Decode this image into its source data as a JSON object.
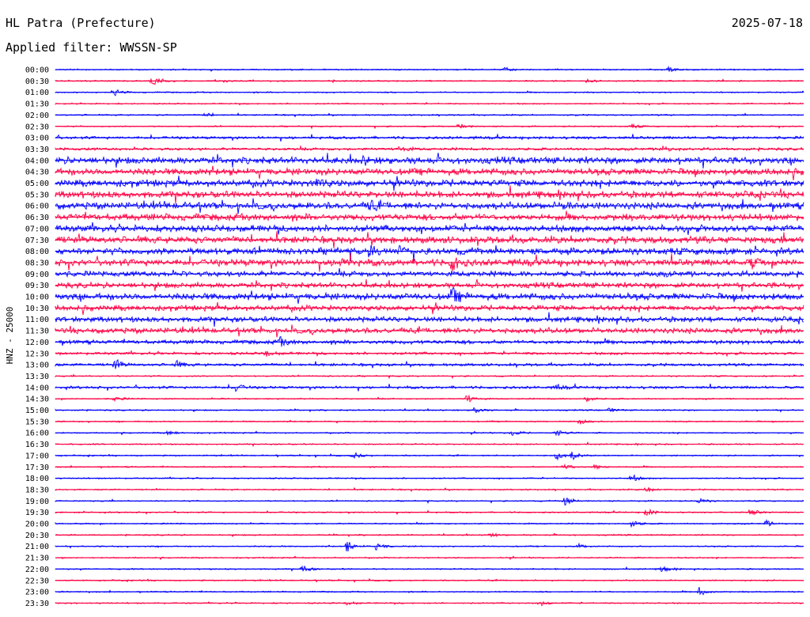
{
  "header": {
    "station": "HL Patra (Prefecture)",
    "filter": "Applied filter: WWSSN-SP",
    "date": "2025-07-18"
  },
  "chart_data": {
    "type": "line",
    "ylabel": "HNZ - 25000",
    "colors": [
      "#0000ff",
      "#ff0044"
    ],
    "row_labels": [
      "00:00",
      "00:30",
      "01:00",
      "01:30",
      "02:00",
      "02:30",
      "03:00",
      "03:30",
      "04:00",
      "04:30",
      "05:00",
      "05:30",
      "06:00",
      "06:30",
      "07:00",
      "07:30",
      "08:00",
      "08:30",
      "09:00",
      "09:30",
      "10:00",
      "10:30",
      "11:00",
      "11:30",
      "12:00",
      "12:30",
      "13:00",
      "13:30",
      "14:00",
      "14:30",
      "15:00",
      "15:30",
      "16:00",
      "16:30",
      "17:00",
      "17:30",
      "18:00",
      "18:30",
      "19:00",
      "19:30",
      "20:00",
      "20:30",
      "21:00",
      "21:30",
      "22:00",
      "22:30",
      "23:00",
      "23:30"
    ],
    "noise_levels": [
      1,
      1,
      1,
      1,
      1,
      1,
      2,
      2,
      5,
      5,
      5,
      5,
      5,
      5,
      5,
      5,
      5,
      5,
      4,
      4,
      5,
      4,
      4,
      4,
      3,
      2,
      2,
      1,
      2,
      1,
      1,
      1,
      1,
      1,
      1,
      1,
      1,
      1,
      1,
      1,
      1,
      1,
      1,
      1,
      1,
      1,
      1,
      1
    ],
    "events": [
      {
        "row": 0,
        "x": 0.6,
        "a": 3
      },
      {
        "row": 0,
        "x": 0.82,
        "a": 3
      },
      {
        "row": 1,
        "x": 0.13,
        "a": 8
      },
      {
        "row": 1,
        "x": 0.71,
        "a": 2
      },
      {
        "row": 2,
        "x": 0.08,
        "a": 4
      },
      {
        "row": 4,
        "x": 0.2,
        "a": 3
      },
      {
        "row": 5,
        "x": 0.54,
        "a": 4
      },
      {
        "row": 5,
        "x": 0.77,
        "a": 3
      },
      {
        "row": 7,
        "x": 0.46,
        "a": 4
      },
      {
        "row": 7,
        "x": 0.81,
        "a": 5
      },
      {
        "row": 8,
        "x": 0.41,
        "a": 4
      },
      {
        "row": 10,
        "x": 0.35,
        "a": 6
      },
      {
        "row": 12,
        "x": 0.42,
        "a": 6
      },
      {
        "row": 12,
        "x": 0.68,
        "a": 5
      },
      {
        "row": 16,
        "x": 0.42,
        "a": 7
      },
      {
        "row": 16,
        "x": 0.46,
        "a": 6
      },
      {
        "row": 17,
        "x": 0.38,
        "a": 7
      },
      {
        "row": 17,
        "x": 0.53,
        "a": 10
      },
      {
        "row": 17,
        "x": 0.93,
        "a": 6
      },
      {
        "row": 20,
        "x": 0.53,
        "a": 9
      },
      {
        "row": 24,
        "x": 0.3,
        "a": 5
      },
      {
        "row": 25,
        "x": 0.28,
        "a": 4
      },
      {
        "row": 26,
        "x": 0.08,
        "a": 6
      },
      {
        "row": 26,
        "x": 0.16,
        "a": 5
      },
      {
        "row": 28,
        "x": 0.24,
        "a": 5
      },
      {
        "row": 28,
        "x": 0.67,
        "a": 3
      },
      {
        "row": 29,
        "x": 0.08,
        "a": 3
      },
      {
        "row": 29,
        "x": 0.55,
        "a": 6
      },
      {
        "row": 29,
        "x": 0.71,
        "a": 4
      },
      {
        "row": 30,
        "x": 0.56,
        "a": 4
      },
      {
        "row": 30,
        "x": 0.74,
        "a": 3
      },
      {
        "row": 31,
        "x": 0.7,
        "a": 4
      },
      {
        "row": 32,
        "x": 0.15,
        "a": 3
      },
      {
        "row": 32,
        "x": 0.61,
        "a": 4
      },
      {
        "row": 32,
        "x": 0.67,
        "a": 5
      },
      {
        "row": 34,
        "x": 0.4,
        "a": 4
      },
      {
        "row": 34,
        "x": 0.67,
        "a": 6
      },
      {
        "row": 34,
        "x": 0.69,
        "a": 5
      },
      {
        "row": 35,
        "x": 0.68,
        "a": 4
      },
      {
        "row": 35,
        "x": 0.72,
        "a": 4
      },
      {
        "row": 36,
        "x": 0.77,
        "a": 5
      },
      {
        "row": 37,
        "x": 0.79,
        "a": 4
      },
      {
        "row": 38,
        "x": 0.68,
        "a": 6
      },
      {
        "row": 38,
        "x": 0.86,
        "a": 4
      },
      {
        "row": 39,
        "x": 0.79,
        "a": 5
      },
      {
        "row": 39,
        "x": 0.93,
        "a": 4
      },
      {
        "row": 40,
        "x": 0.77,
        "a": 5
      },
      {
        "row": 40,
        "x": 0.95,
        "a": 4
      },
      {
        "row": 41,
        "x": 0.58,
        "a": 3
      },
      {
        "row": 42,
        "x": 0.39,
        "a": 7
      },
      {
        "row": 42,
        "x": 0.43,
        "a": 5
      },
      {
        "row": 42,
        "x": 0.7,
        "a": 3
      },
      {
        "row": 44,
        "x": 0.33,
        "a": 5
      },
      {
        "row": 44,
        "x": 0.81,
        "a": 4
      },
      {
        "row": 46,
        "x": 0.86,
        "a": 6
      },
      {
        "row": 47,
        "x": 0.39,
        "a": 3
      },
      {
        "row": 47,
        "x": 0.65,
        "a": 3
      }
    ]
  }
}
